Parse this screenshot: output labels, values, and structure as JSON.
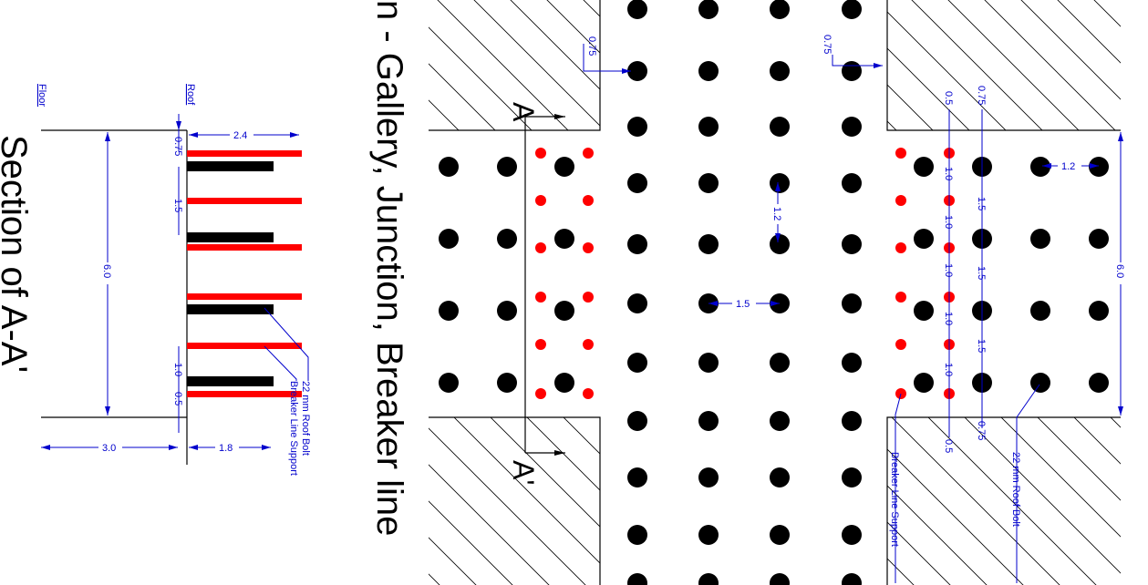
{
  "section_title": "Section of A-A'",
  "plan_title": "n - Gallery, Junction, Breaker line",
  "section": {
    "floor_label": "Floor",
    "roof_label": "Roof",
    "dims": {
      "bolt_length": "2.4",
      "top_spacing": "0.75",
      "spacing": "1.5",
      "height": "6.0",
      "lower_spacing": "1.0",
      "bottom_offset": "0.5",
      "floor_width": "3.0",
      "support_length": "1.8"
    },
    "legend_bolt": "22 mm Roof Bolt",
    "legend_support": "Breaker Line Support"
  },
  "plan": {
    "section_marker_top": "A",
    "section_marker_bottom": "A'",
    "dims": {
      "left_offset": "0.75",
      "right_offset": "0.75",
      "gallery_spacing": "1.2",
      "center_spacing": "1.5",
      "bolt_gap": "1.2",
      "top_a": "0.5",
      "top_b": "0.75",
      "support_spacing": [
        "1.0",
        "1.0",
        "1.0",
        "1.0",
        "1.0"
      ],
      "bolt_spacing": [
        "1.5",
        "1.5",
        "1.5"
      ],
      "bottom_b": "0.75",
      "bottom_a": "0.5",
      "total_width": "6.0"
    },
    "legend_support": "Breaker Line Support",
    "legend_bolt": "22 mm Roof Bolt"
  },
  "colors": {
    "support": "#ff0000",
    "bolt": "#000000",
    "dimension": "#0000cc"
  }
}
